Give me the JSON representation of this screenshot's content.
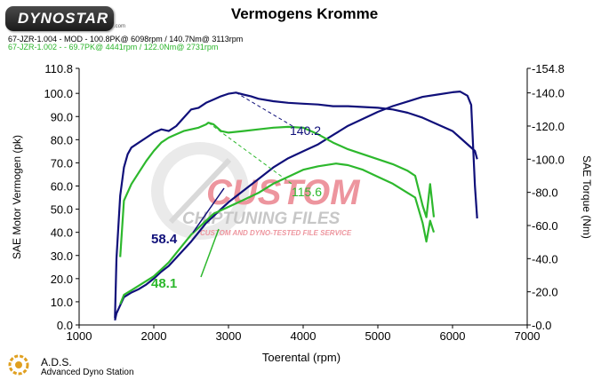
{
  "header": {
    "logo_text": "DYNOSTAR",
    "logo_web": ".com",
    "title": "Vermogens Kromme",
    "run1": "67-JZR-1.004 - MOD - 100.8PK@ 6098rpm / 140.7Nm@ 3113rpm",
    "run2": "67-JZR-1.002 - - 69.7PK@ 4441rpm / 122.0Nm@ 2731rpm"
  },
  "footer": {
    "name": "A.D.S.",
    "subtitle": "Advanced Dyno Station"
  },
  "watermark": {
    "line1": "CUSTOM",
    "line2": "CHIPTUNING FILES",
    "line3": "CUSTOM AND DYNO-TESTED FILE SERVICE"
  },
  "colors": {
    "mod": "#10107a",
    "stock": "#2db82d",
    "watermark": "#e04050"
  },
  "chart_data": {
    "type": "line",
    "title": "Vermogens Kromme",
    "xlabel": "Toerental (rpm)",
    "ylabel": "SAE Motor Vermogen (pk)",
    "y2label": "SAE Torque (Nm)",
    "xlim": [
      1000,
      7000
    ],
    "ylim": [
      0,
      110.8
    ],
    "y2lim": [
      0,
      154.8
    ],
    "x_ticks": [
      "1000",
      "2000",
      "3000",
      "4000",
      "5000",
      "6000",
      "7000"
    ],
    "y_ticks": [
      "0.0",
      "10.0",
      "20.0",
      "30.0",
      "40.0",
      "50.0",
      "60.0",
      "70.0",
      "80.0",
      "90.0",
      "100.0",
      "110.8"
    ],
    "y2_ticks": [
      "0.0",
      "20.0",
      "40.0",
      "60.0",
      "80.0",
      "100.0",
      "120.0",
      "140.0",
      "154.8"
    ],
    "grid": false,
    "annotations": [
      {
        "text": "140.2",
        "x": 3900,
        "y": 140.2,
        "axis": "right",
        "series": "mod"
      },
      {
        "text": "115.6",
        "x": 3900,
        "y": 115.6,
        "axis": "right",
        "series": "stock"
      },
      {
        "text": "58.4",
        "x": 1880,
        "y": 58.4,
        "axis": "left",
        "series": "mod"
      },
      {
        "text": "48.1",
        "x": 1880,
        "y": 48.1,
        "axis": "left",
        "series": "stock"
      }
    ],
    "series": [
      {
        "name": "67-JZR-1.004 - MOD",
        "role": "mod",
        "kind": "power",
        "axis": "left",
        "x": [
          1480,
          1500,
          1600,
          1700,
          1800,
          1900,
          2000,
          2100,
          2200,
          2300,
          2400,
          2500,
          2600,
          2700,
          2800,
          2900,
          3000,
          3200,
          3400,
          3600,
          3800,
          4000,
          4200,
          4400,
          4600,
          4800,
          5000,
          5200,
          5400,
          5600,
          5800,
          6000,
          6100,
          6200,
          6250,
          6300,
          6330
        ],
        "y": [
          2,
          5,
          12,
          14,
          15.5,
          17.5,
          20,
          23,
          25.5,
          29,
          32.5,
          36,
          40,
          44,
          47,
          50,
          53,
          58,
          63,
          68,
          72,
          75,
          78,
          82,
          86,
          89,
          92,
          94.5,
          96.5,
          98.5,
          99.5,
          100.5,
          100.8,
          99,
          95,
          60,
          46
        ]
      },
      {
        "name": "67-JZR-1.004 - MOD",
        "role": "mod",
        "kind": "torque",
        "axis": "right",
        "x": [
          1480,
          1500,
          1550,
          1600,
          1650,
          1700,
          1800,
          1900,
          2000,
          2100,
          2200,
          2300,
          2400,
          2500,
          2600,
          2700,
          2800,
          2900,
          3000,
          3100,
          3200,
          3300,
          3400,
          3600,
          3800,
          4000,
          4200,
          4400,
          4600,
          4800,
          5000,
          5200,
          5400,
          5600,
          5800,
          6000,
          6100,
          6200,
          6300,
          6330
        ],
        "y": [
          4,
          40,
          78,
          95,
          103,
          107,
          110,
          113,
          116,
          118,
          117,
          120,
          125,
          130,
          131,
          134,
          136,
          138,
          139.5,
          140.2,
          139,
          138,
          136.5,
          135,
          134,
          133.5,
          133,
          132,
          132,
          131.5,
          131,
          130,
          128,
          125,
          121,
          117,
          113,
          109,
          105,
          100
        ]
      },
      {
        "name": "67-JZR-1.002",
        "role": "stock",
        "kind": "power",
        "axis": "left",
        "x": [
          1550,
          1600,
          1700,
          1800,
          1900,
          2000,
          2100,
          2200,
          2300,
          2400,
          2500,
          2600,
          2700,
          2800,
          3000,
          3200,
          3400,
          3600,
          3800,
          4000,
          4200,
          4441,
          4600,
          4800,
          5000,
          5200,
          5400,
          5500,
          5600,
          5650,
          5700,
          5750
        ],
        "y": [
          9,
          13,
          15,
          17,
          19,
          21,
          24,
          27,
          31,
          35,
          39,
          42,
          45,
          48,
          51,
          54,
          57,
          61,
          64,
          67,
          68.5,
          69.7,
          69,
          67,
          64,
          61,
          57,
          55,
          44,
          36,
          45,
          40
        ]
      },
      {
        "name": "67-JZR-1.002",
        "role": "stock",
        "kind": "torque",
        "axis": "right",
        "x": [
          1550,
          1600,
          1700,
          1800,
          1900,
          2000,
          2100,
          2200,
          2300,
          2400,
          2500,
          2600,
          2700,
          2731,
          2800,
          2900,
          3000,
          3200,
          3400,
          3600,
          3800,
          4000,
          4200,
          4400,
          4600,
          4800,
          5000,
          5200,
          5400,
          5500,
          5600,
          5650,
          5700,
          5750
        ],
        "y": [
          41,
          75,
          85,
          92,
          99,
          105,
          110,
          113,
          115,
          117,
          118,
          119,
          121,
          122,
          121,
          117,
          116,
          117,
          118,
          119,
          119.5,
          119,
          115,
          110,
          106,
          103,
          100,
          97,
          93,
          90,
          72,
          65,
          85,
          65
        ]
      }
    ]
  }
}
